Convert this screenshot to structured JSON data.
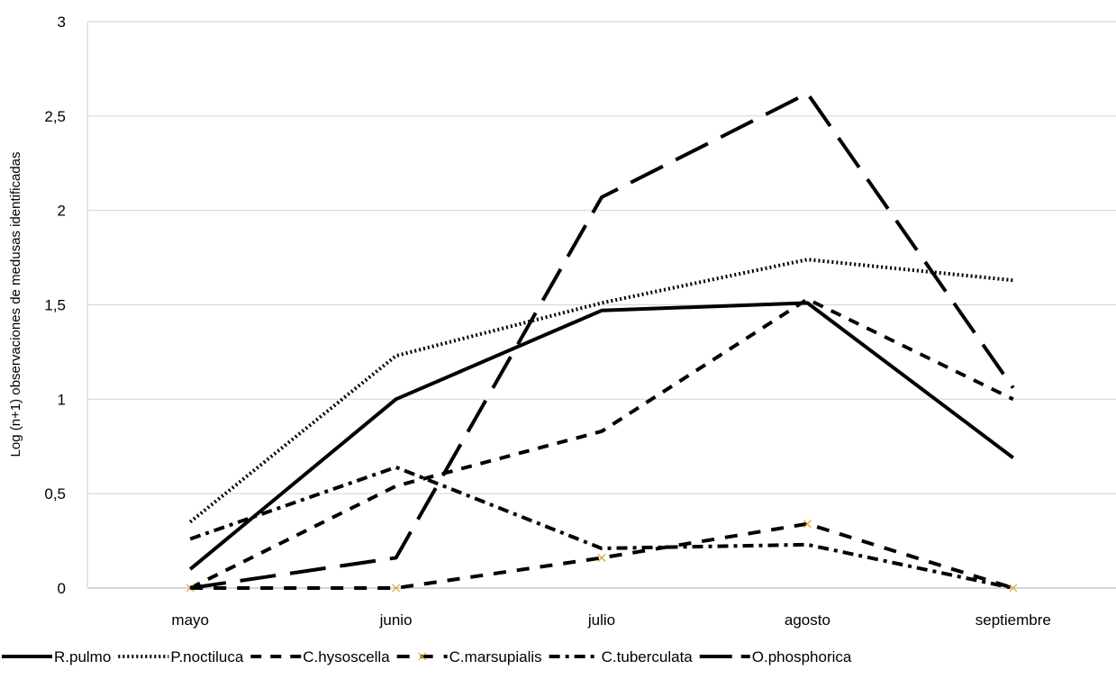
{
  "chart_data": {
    "type": "line",
    "title": "",
    "xlabel": "",
    "ylabel": "Log (n+1) observaciones de medusas identificadas",
    "ylim": [
      0,
      3
    ],
    "yticks": [
      "0",
      "0,5",
      "1",
      "1,5",
      "2",
      "2,5",
      "3"
    ],
    "ytick_values": [
      0,
      0.5,
      1,
      1.5,
      2,
      2.5,
      3
    ],
    "categories": [
      "mayo",
      "junio",
      "julio",
      "agosto",
      "septiembre"
    ],
    "grid": true,
    "legend_position": "bottom",
    "series": [
      {
        "name": "R.pulmo",
        "values": [
          0.1,
          1.0,
          1.47,
          1.51,
          0.69
        ],
        "color": "#000000",
        "style": "solid"
      },
      {
        "name": "P.noctiluca",
        "values": [
          0.35,
          1.23,
          1.51,
          1.74,
          1.63
        ],
        "color": "#000000",
        "style": "dotted"
      },
      {
        "name": "C.hysoscella",
        "values": [
          0.0,
          0.54,
          0.83,
          1.53,
          1.0
        ],
        "color": "#000000",
        "style": "dashed"
      },
      {
        "name": "C.marsupialis",
        "values": [
          0.0,
          0.0,
          0.16,
          0.34,
          0.0
        ],
        "color": "#000000",
        "style": "dashed-marker",
        "marker_color": "#e0a020"
      },
      {
        "name": "C.tuberculata",
        "values": [
          0.26,
          0.64,
          0.21,
          0.23,
          0.0
        ],
        "color": "#000000",
        "style": "dashed-dotted"
      },
      {
        "name": "O.phosphorica",
        "values": [
          0.0,
          0.16,
          2.07,
          2.62,
          1.06
        ],
        "color": "#000000",
        "style": "long-dash"
      }
    ]
  }
}
